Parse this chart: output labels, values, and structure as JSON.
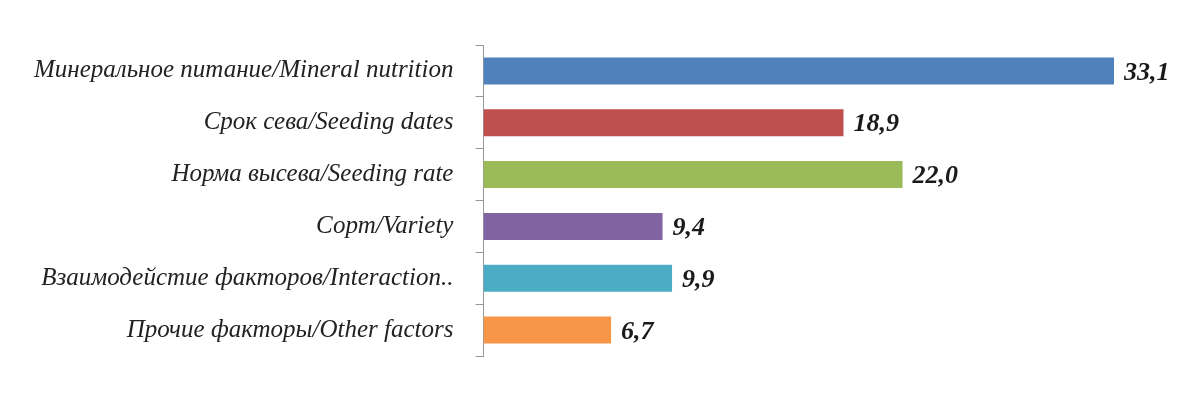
{
  "chart_data": {
    "type": "bar",
    "orientation": "horizontal",
    "categories": [
      "Минеральное питание/Mineral nutrition",
      "Срок сева/Seeding dates",
      "Норма высева/Seeding rate",
      "Сорт/Variety",
      "Взаимодейстие факторов/Interaction..",
      "Прочие факторы/Other factors"
    ],
    "values": [
      33.1,
      18.9,
      22.0,
      9.4,
      9.9,
      6.7
    ],
    "value_labels": [
      "33,1",
      "18,9",
      "22,0",
      "9,4",
      "9,9",
      "6,7"
    ],
    "colors": [
      "#4f81bd",
      "#c0504d",
      "#9bbb59",
      "#8064a2",
      "#4bacc6",
      "#f79646"
    ],
    "tick_labels": "y",
    "grid": false,
    "legend": false
  }
}
